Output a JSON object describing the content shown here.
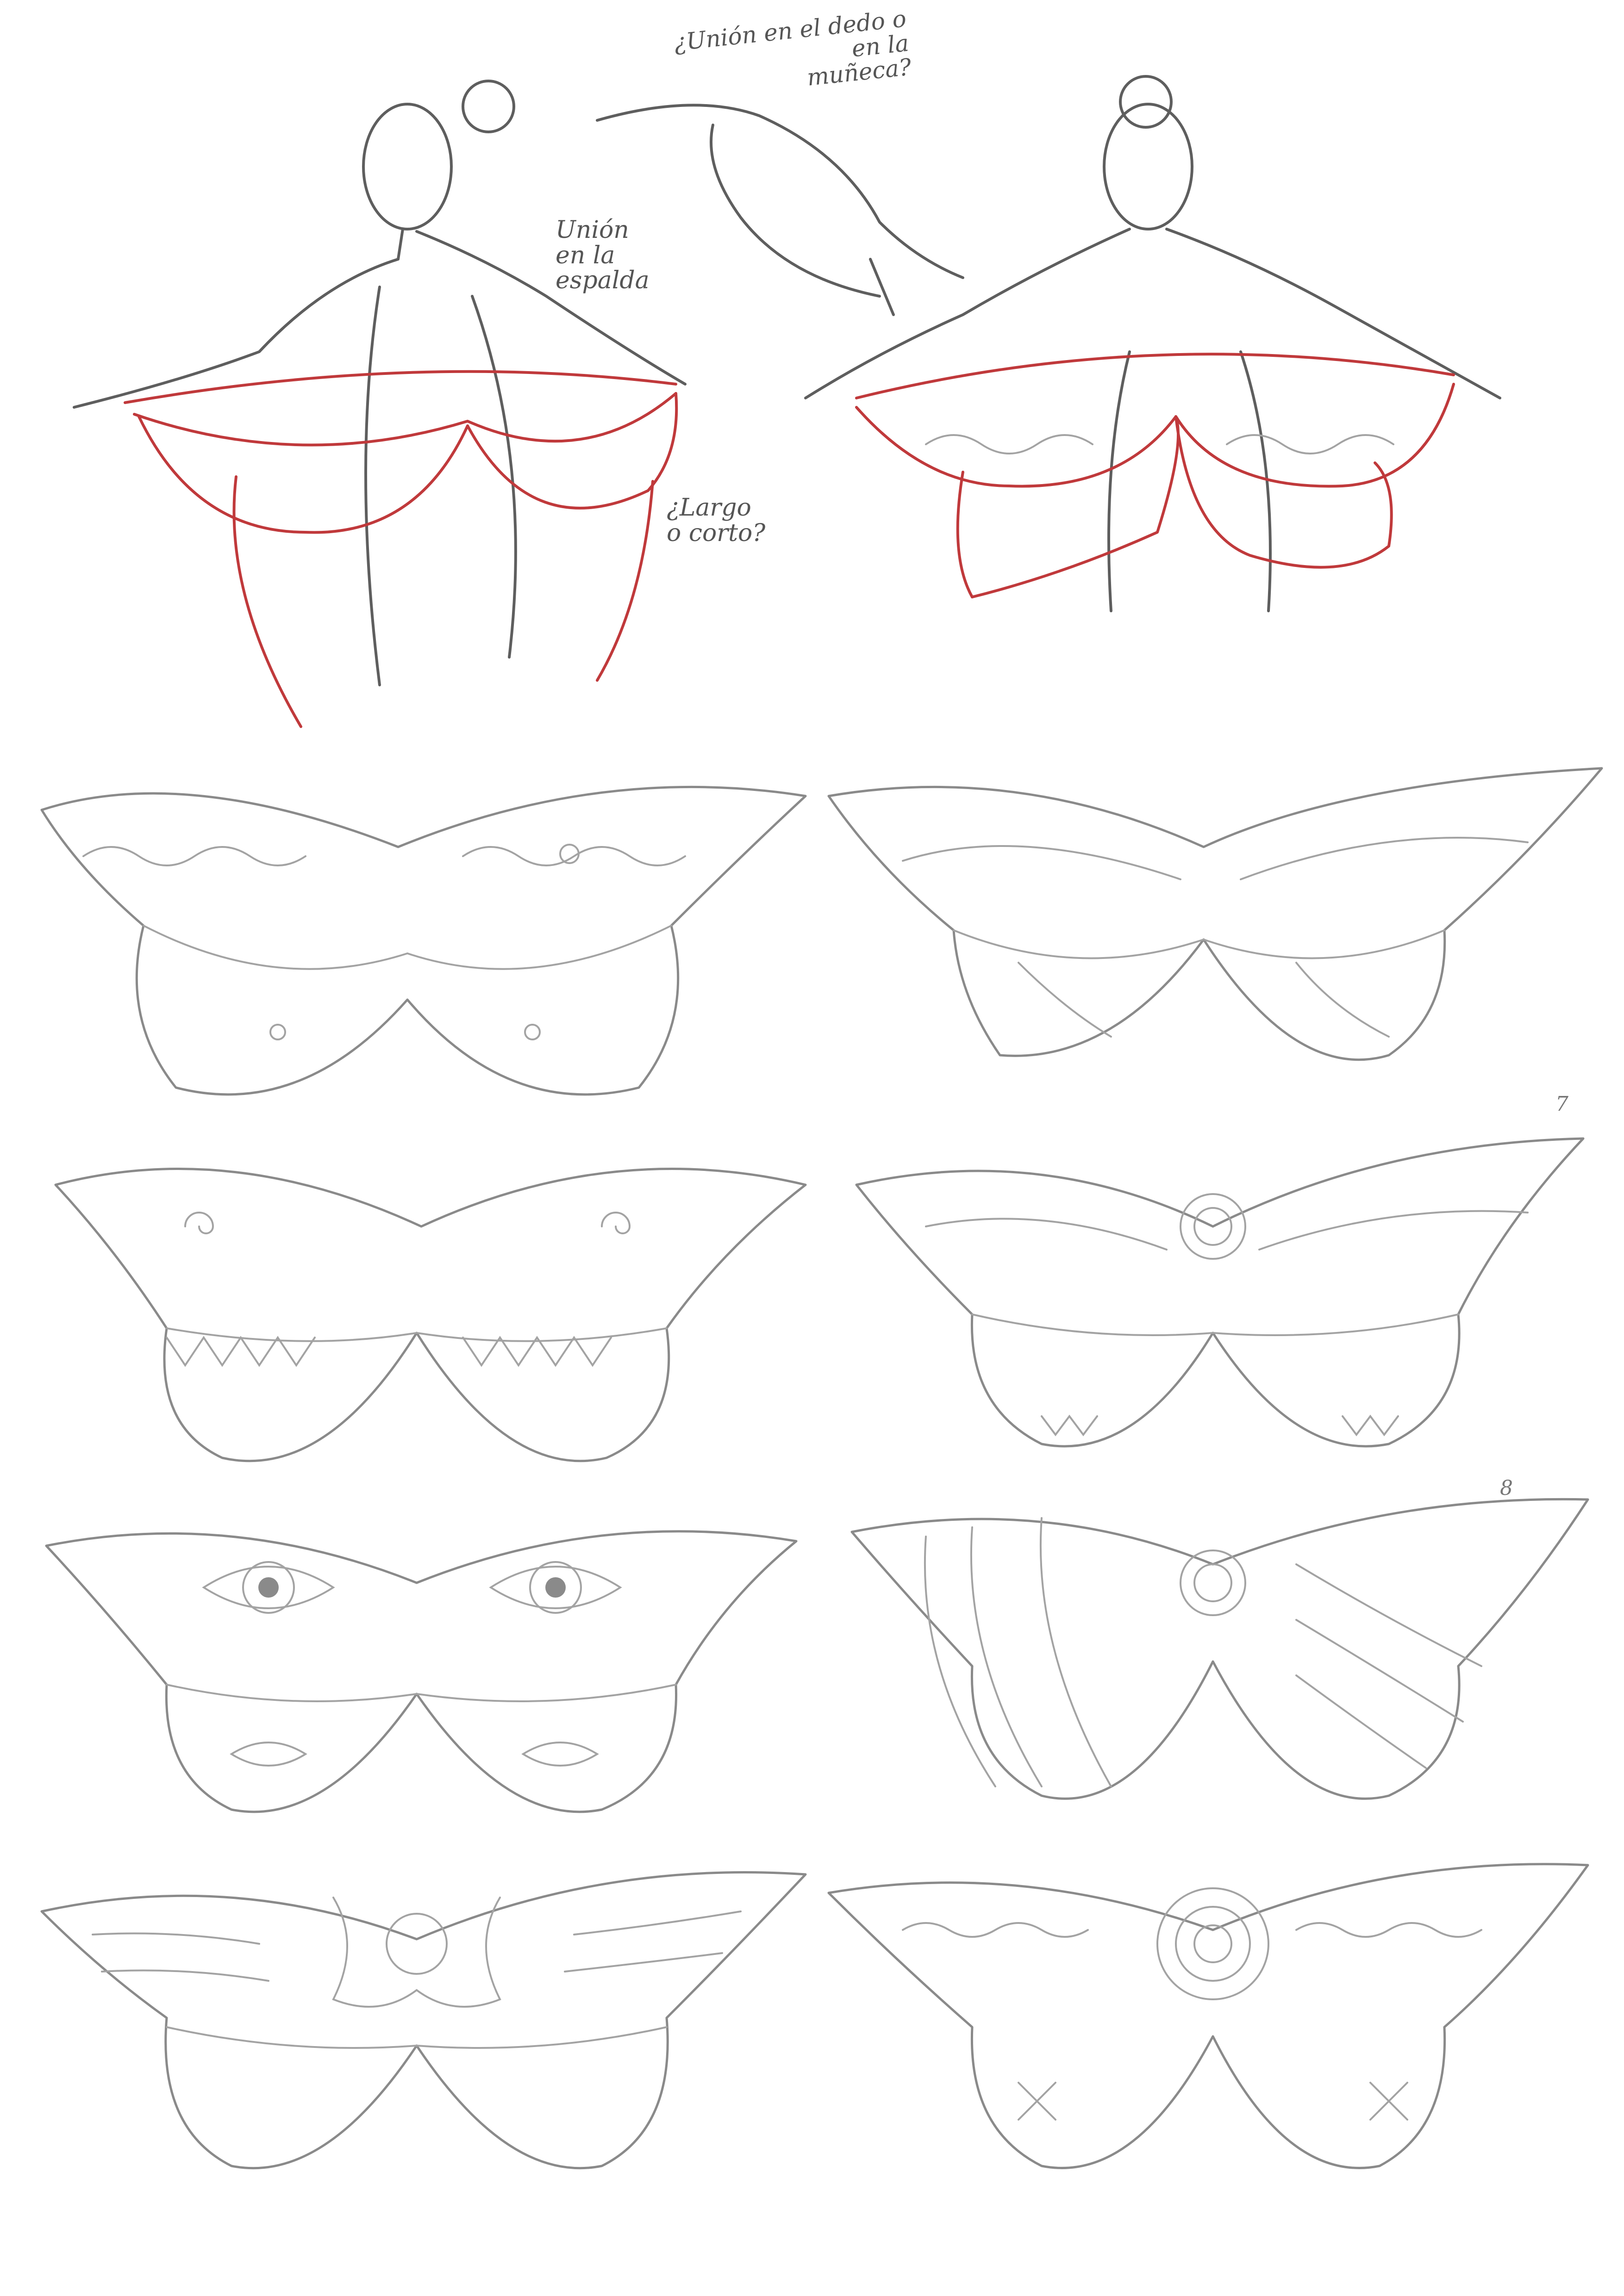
{
  "annotations": {
    "shoulder_or_wrist": "¿Unión en el dedo o\nen la\nmuñeca?",
    "back_join": "Unión\nen la\nespalda",
    "long_or_short": "¿Largo\no corto?"
  },
  "design_marks": {
    "mark_row2": "7",
    "mark_row3": "8"
  },
  "colors": {
    "pencil": "#8a8a8a",
    "red_pencil": "#c0393b",
    "paper": "#ffffff"
  },
  "designs": [
    {
      "row": 1,
      "col": 1,
      "pattern": "scallops-dots"
    },
    {
      "row": 1,
      "col": 2,
      "pattern": "veins-sparkles"
    },
    {
      "row": 2,
      "col": 1,
      "pattern": "swirls-zigzag"
    },
    {
      "row": 2,
      "col": 2,
      "pattern": "mandala-flowing"
    },
    {
      "row": 3,
      "col": 1,
      "pattern": "eyes"
    },
    {
      "row": 3,
      "col": 2,
      "pattern": "stripes-arcs"
    },
    {
      "row": 4,
      "col": 1,
      "pattern": "flower-feathers"
    },
    {
      "row": 4,
      "col": 2,
      "pattern": "spiral-waves"
    }
  ]
}
